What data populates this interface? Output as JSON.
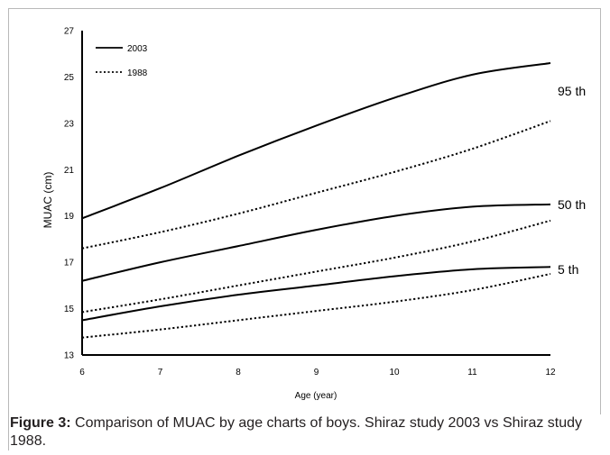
{
  "chart_data": {
    "type": "line",
    "xlabel": "Age (year)",
    "ylabel": "MUAC (cm)",
    "xlim": [
      6,
      12
    ],
    "ylim": [
      13,
      27
    ],
    "xticks": [
      6,
      7,
      8,
      9,
      10,
      11,
      12
    ],
    "yticks": [
      13,
      15,
      17,
      19,
      21,
      23,
      25,
      27
    ],
    "grid": false,
    "legend": {
      "placement": "top-left",
      "entries": [
        {
          "label": "2003",
          "style": "solid"
        },
        {
          "label": "1988",
          "style": "dotted"
        }
      ]
    },
    "x": [
      6,
      7,
      8,
      9,
      10,
      11,
      12
    ],
    "series": [
      {
        "group": "2003",
        "style": "solid",
        "percentile": "95 th",
        "values": [
          18.9,
          20.2,
          21.6,
          22.9,
          24.1,
          25.1,
          25.6
        ]
      },
      {
        "group": "1988",
        "style": "dotted",
        "percentile": "95 th",
        "values": [
          17.6,
          18.3,
          19.1,
          20.0,
          20.9,
          21.9,
          23.1
        ]
      },
      {
        "group": "2003",
        "style": "solid",
        "percentile": "50 th",
        "values": [
          16.2,
          17.0,
          17.7,
          18.4,
          19.0,
          19.4,
          19.5
        ]
      },
      {
        "group": "1988",
        "style": "dotted",
        "percentile": "50 th",
        "values": [
          14.85,
          15.4,
          16.0,
          16.6,
          17.2,
          17.9,
          18.8
        ]
      },
      {
        "group": "2003",
        "style": "solid",
        "percentile": "5 th",
        "values": [
          14.5,
          15.1,
          15.6,
          16.0,
          16.4,
          16.7,
          16.8
        ]
      },
      {
        "group": "1988",
        "style": "dotted",
        "percentile": "5 th",
        "values": [
          13.75,
          14.1,
          14.5,
          14.9,
          15.3,
          15.8,
          16.5
        ]
      }
    ],
    "annotations": [
      {
        "text": "95 th",
        "x": 12,
        "y": 24.4
      },
      {
        "text": "50 th",
        "x": 12,
        "y": 19.5
      },
      {
        "text": "5 th",
        "x": 12,
        "y": 16.7
      }
    ]
  },
  "caption": {
    "label": "Figure 3:",
    "text": " Comparison of MUAC by age charts of boys. Shiraz study 2003 vs Shiraz study 1988."
  }
}
